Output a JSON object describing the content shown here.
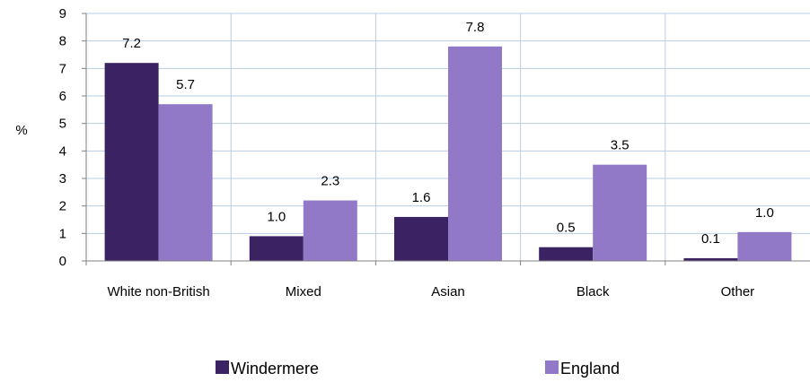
{
  "chart_data": {
    "type": "bar",
    "ylabel": "%",
    "ylim": [
      0,
      9
    ],
    "yticks": [
      0,
      1,
      2,
      3,
      4,
      5,
      6,
      7,
      8,
      9
    ],
    "categories": [
      "White non-British",
      "Mixed",
      "Asian",
      "Black",
      "Other"
    ],
    "series": [
      {
        "name": "Windermere",
        "color": "#3b2262",
        "values": [
          7.2,
          1.0,
          1.6,
          0.5,
          0.1
        ],
        "display_values": [
          7.2,
          0.9,
          1.6,
          0.5,
          0.1
        ],
        "labels": [
          "7.2",
          "1.0",
          "1.6",
          "0.5",
          "0.1"
        ]
      },
      {
        "name": "England",
        "color": "#9179c7",
        "values": [
          5.7,
          2.3,
          7.8,
          3.5,
          1.0
        ],
        "display_values": [
          5.7,
          2.2,
          7.8,
          3.5,
          1.05
        ],
        "labels": [
          "5.7",
          "2.3",
          "7.8",
          "3.5",
          "1.0"
        ]
      }
    ],
    "grid": true,
    "legend": "bottom"
  }
}
